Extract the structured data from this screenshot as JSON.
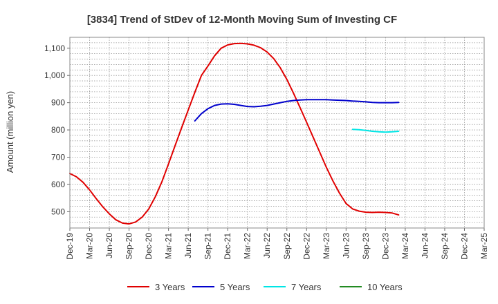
{
  "chart_data": {
    "type": "line",
    "title": "[3834]  Trend of StDev of 12-Month Moving Sum of Investing CF",
    "ylabel": "Amount (million yen)",
    "xlabel": "",
    "ylim": [
      440,
      1140
    ],
    "yticks": [
      500,
      600,
      700,
      800,
      900,
      1000,
      1100
    ],
    "ytick_labels": [
      "500",
      "600",
      "700",
      "800",
      "900",
      "1,000",
      "1,100"
    ],
    "x_categories": [
      "Dec-19",
      "Mar-20",
      "Jun-20",
      "Sep-20",
      "Dec-20",
      "Mar-21",
      "Jun-21",
      "Sep-21",
      "Dec-21",
      "Mar-22",
      "Jun-22",
      "Sep-22",
      "Dec-22",
      "Mar-23",
      "Jun-23",
      "Sep-23",
      "Dec-23",
      "Mar-24",
      "Jun-24",
      "Sep-24",
      "Dec-24",
      "Mar-25"
    ],
    "grid": true,
    "legend_position": "bottom",
    "series": [
      {
        "name": "3 Years",
        "color": "#e00000",
        "values": [
          [
            "Dec-19",
            640
          ],
          [
            "Jan-20",
            628
          ],
          [
            "Feb-20",
            608
          ],
          [
            "Mar-20",
            580
          ],
          [
            "Apr-20",
            548
          ],
          [
            "May-20",
            518
          ],
          [
            "Jun-20",
            492
          ],
          [
            "Jul-20",
            470
          ],
          [
            "Aug-20",
            458
          ],
          [
            "Sep-20",
            455
          ],
          [
            "Oct-20",
            462
          ],
          [
            "Nov-20",
            480
          ],
          [
            "Dec-20",
            510
          ],
          [
            "Jan-21",
            555
          ],
          [
            "Feb-21",
            610
          ],
          [
            "Mar-21",
            675
          ],
          [
            "Apr-21",
            742
          ],
          [
            "May-21",
            808
          ],
          [
            "Jun-21",
            873
          ],
          [
            "Jul-21",
            938
          ],
          [
            "Aug-21",
            1000
          ],
          [
            "Sep-21",
            1035
          ],
          [
            "Oct-21",
            1072
          ],
          [
            "Nov-21",
            1100
          ],
          [
            "Dec-21",
            1112
          ],
          [
            "Jan-22",
            1117
          ],
          [
            "Feb-22",
            1118
          ],
          [
            "Mar-22",
            1116
          ],
          [
            "Apr-22",
            1111
          ],
          [
            "May-22",
            1102
          ],
          [
            "Jun-22",
            1086
          ],
          [
            "Jul-22",
            1062
          ],
          [
            "Aug-22",
            1028
          ],
          [
            "Sep-22",
            985
          ],
          [
            "Oct-22",
            935
          ],
          [
            "Nov-22",
            882
          ],
          [
            "Dec-22",
            828
          ],
          [
            "Jan-23",
            773
          ],
          [
            "Feb-23",
            718
          ],
          [
            "Mar-23",
            663
          ],
          [
            "Apr-23",
            613
          ],
          [
            "May-23",
            568
          ],
          [
            "Jun-23",
            530
          ],
          [
            "Jul-23",
            510
          ],
          [
            "Aug-23",
            502
          ],
          [
            "Sep-23",
            498
          ],
          [
            "Oct-23",
            497
          ],
          [
            "Nov-23",
            498
          ],
          [
            "Dec-23",
            497
          ],
          [
            "Jan-24",
            495
          ],
          [
            "Feb-24",
            488
          ]
        ]
      },
      {
        "name": "5 Years",
        "color": "#0000cc",
        "values": [
          [
            "Jul-21",
            833
          ],
          [
            "Aug-21",
            860
          ],
          [
            "Sep-21",
            878
          ],
          [
            "Oct-21",
            890
          ],
          [
            "Nov-21",
            895
          ],
          [
            "Dec-21",
            896
          ],
          [
            "Jan-22",
            894
          ],
          [
            "Feb-22",
            890
          ],
          [
            "Mar-22",
            886
          ],
          [
            "Apr-22",
            885
          ],
          [
            "May-22",
            887
          ],
          [
            "Jun-22",
            890
          ],
          [
            "Jul-22",
            895
          ],
          [
            "Aug-22",
            900
          ],
          [
            "Sep-22",
            905
          ],
          [
            "Oct-22",
            908
          ],
          [
            "Nov-22",
            910
          ],
          [
            "Dec-22",
            911
          ],
          [
            "Jan-23",
            911
          ],
          [
            "Feb-23",
            911
          ],
          [
            "Mar-23",
            911
          ],
          [
            "Apr-23",
            910
          ],
          [
            "May-23",
            909
          ],
          [
            "Jun-23",
            908
          ],
          [
            "Jul-23",
            906
          ],
          [
            "Aug-23",
            905
          ],
          [
            "Sep-23",
            903
          ],
          [
            "Oct-23",
            901
          ],
          [
            "Nov-23",
            900
          ],
          [
            "Dec-23",
            900
          ],
          [
            "Jan-24",
            900
          ],
          [
            "Feb-24",
            901
          ]
        ]
      },
      {
        "name": "7 Years",
        "color": "#00e5e5",
        "values": [
          [
            "Jul-23",
            802
          ],
          [
            "Aug-23",
            801
          ],
          [
            "Sep-23",
            798
          ],
          [
            "Oct-23",
            795
          ],
          [
            "Nov-23",
            793
          ],
          [
            "Dec-23",
            792
          ],
          [
            "Jan-24",
            793
          ],
          [
            "Feb-24",
            795
          ]
        ]
      },
      {
        "name": "10 Years",
        "color": "#228b22",
        "values": []
      }
    ]
  }
}
